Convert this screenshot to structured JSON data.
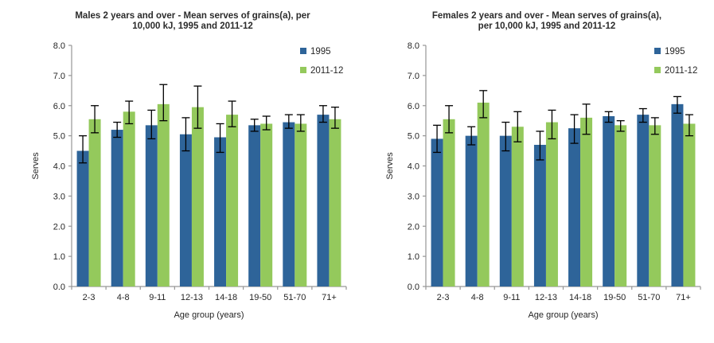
{
  "style": {
    "background": "#ffffff",
    "color_1995": "#2e6499",
    "color_2011": "#94c95c",
    "error_bar_color": "#000000",
    "axis_color": "#969696",
    "text_color": "#262626"
  },
  "chart_data": [
    {
      "type": "bar",
      "title": "Males 2 years and over - Mean serves of grains(a), per 10,000 kJ, 1995 and 2011-12",
      "title_lines": {
        "line1": "Males 2 years and over - Mean serves of grains(a), per",
        "line2": "10,000 kJ, 1995 and 2011-12"
      },
      "xlabel": "Age group (years)",
      "ylabel": "Serves",
      "ylim": [
        0,
        8
      ],
      "yticks": [
        "0.0",
        "1.0",
        "2.0",
        "3.0",
        "4.0",
        "5.0",
        "6.0",
        "7.0",
        "8.0"
      ],
      "grid": false,
      "error_bars": true,
      "legend_position": "top-right",
      "categories": [
        "2-3",
        "4-8",
        "9-11",
        "12-13",
        "14-18",
        "19-50",
        "51-70",
        "71+"
      ],
      "series": [
        {
          "name": "1995",
          "color": "#2e6499",
          "values": [
            4.5,
            5.2,
            5.35,
            5.05,
            4.95,
            5.35,
            5.45,
            5.7
          ],
          "error_low": [
            4.1,
            4.95,
            4.9,
            4.5,
            4.45,
            5.15,
            5.25,
            5.45
          ],
          "error_high": [
            5.0,
            5.45,
            5.85,
            5.6,
            5.4,
            5.55,
            5.7,
            6.0
          ]
        },
        {
          "name": "2011-12",
          "color": "#94c95c",
          "values": [
            5.55,
            5.8,
            6.05,
            5.95,
            5.7,
            5.4,
            5.4,
            5.55
          ],
          "error_low": [
            5.1,
            5.4,
            5.5,
            5.25,
            5.3,
            5.2,
            5.15,
            5.25
          ],
          "error_high": [
            6.0,
            6.15,
            6.7,
            6.65,
            6.15,
            5.65,
            5.7,
            5.95
          ]
        }
      ]
    },
    {
      "type": "bar",
      "title": "Females 2 years and over - Mean serves of grains(a), per 10,000 kJ, 1995 and 2011-12",
      "title_lines": {
        "line1": "Females 2 years and over - Mean serves of grains(a),",
        "line2": "per 10,000 kJ, 1995 and 2011-12"
      },
      "xlabel": "Age group (years)",
      "ylabel": "Serves",
      "ylim": [
        0,
        8
      ],
      "yticks": [
        "0.0",
        "1.0",
        "2.0",
        "3.0",
        "4.0",
        "5.0",
        "6.0",
        "7.0",
        "8.0"
      ],
      "grid": false,
      "error_bars": true,
      "legend_position": "top-right",
      "categories": [
        "2-3",
        "4-8",
        "9-11",
        "12-13",
        "14-18",
        "19-50",
        "51-70",
        "71+"
      ],
      "series": [
        {
          "name": "1995",
          "color": "#2e6499",
          "values": [
            4.9,
            5.0,
            5.0,
            4.7,
            5.25,
            5.65,
            5.7,
            6.05
          ],
          "error_low": [
            4.45,
            4.7,
            4.5,
            4.2,
            4.75,
            5.45,
            5.45,
            5.75
          ],
          "error_high": [
            5.35,
            5.3,
            5.45,
            5.15,
            5.7,
            5.8,
            5.9,
            6.3
          ]
        },
        {
          "name": "2011-12",
          "color": "#94c95c",
          "values": [
            5.55,
            6.1,
            5.3,
            5.45,
            5.6,
            5.35,
            5.35,
            5.4
          ],
          "error_low": [
            5.1,
            5.6,
            4.8,
            4.9,
            5.05,
            5.15,
            5.05,
            5.0
          ],
          "error_high": [
            6.0,
            6.5,
            5.8,
            5.85,
            6.05,
            5.5,
            5.6,
            5.7
          ]
        }
      ]
    }
  ]
}
